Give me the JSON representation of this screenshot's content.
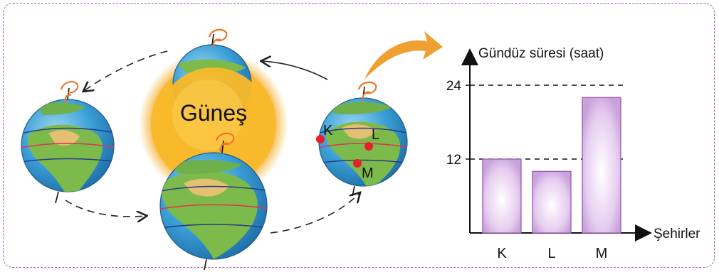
{
  "sun": {
    "label": "Güneş"
  },
  "cities": [
    {
      "label": "K"
    },
    {
      "label": "L"
    },
    {
      "label": "M"
    }
  ],
  "chart_data": {
    "type": "bar",
    "categories": [
      "K",
      "L",
      "M"
    ],
    "values": [
      12,
      10,
      22
    ],
    "ylabel": "Gündüz süresi (saat)",
    "xlabel": "Şehirler",
    "yticks": [
      12,
      24
    ],
    "ylim": [
      0,
      24
    ],
    "reference_lines": [
      12,
      24
    ],
    "bar_color": "#d9b6e6"
  },
  "colors": {
    "sun": "#f5b526",
    "ocean": "#3aa0d8",
    "land": "#5da84a",
    "equator": "#e0344f",
    "tropics": "#2b3a8c",
    "city_dot": "#e8202a",
    "rotation_arrow": "#e8782a",
    "orbit_arrow": "#222222",
    "frame": "#a05aa8",
    "pointer_arrow": "#f0a030"
  }
}
